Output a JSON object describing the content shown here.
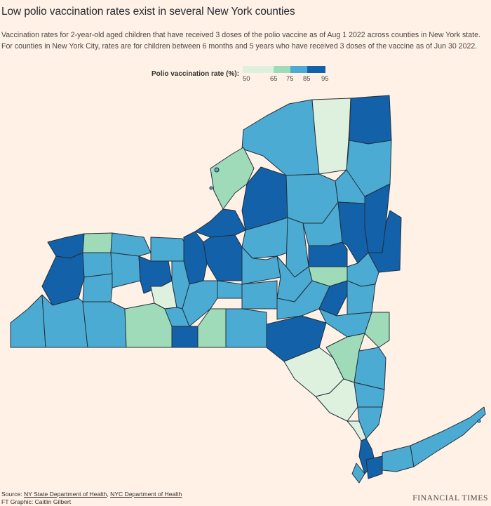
{
  "title": "Low polio vaccination rates exist in several New York counties",
  "subtitle_line1": "Vaccination rates for 2-year-old aged children that have received 3 doses of the polio vaccine as of Aug 1 2022 across counties in New York state.",
  "subtitle_line2": "For counties in New York City, rates are for children between 6 months and 5 years who have received 3 doses of the vaccine as of Jun 30 2022.",
  "legend": {
    "label": "Polio vaccination rate (%):",
    "ticks": [
      "50",
      "65",
      "75",
      "85",
      "95"
    ],
    "bins": [
      {
        "range": "50-65",
        "color": "#def1df"
      },
      {
        "range": "65-75",
        "color": "#9fdbb8"
      },
      {
        "range": "75-85",
        "color": "#4cabd2"
      },
      {
        "range": "85-95",
        "color": "#1361a9"
      }
    ]
  },
  "footer": {
    "source_prefix": "Source: ",
    "source_1": "NY State Department of Health",
    "separator": ", ",
    "source_2": "NYC Department of Health",
    "graphic": "FT Graphic: Caitlin Gilbert"
  },
  "brand": "FINANCIAL TIMES"
}
